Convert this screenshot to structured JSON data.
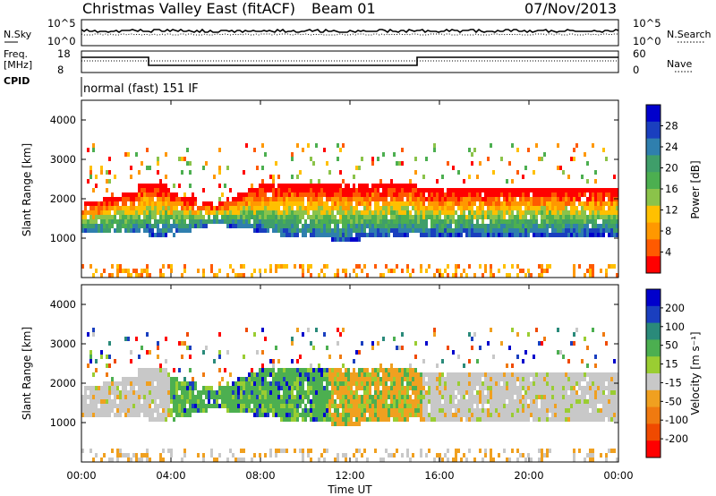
{
  "header": {
    "station": "Christmas Valley East (fitACF)",
    "beam": "Beam 01",
    "date": "07/Nov/2013"
  },
  "side_labels": {
    "nsky": "N.Sky",
    "freq": "Freq.",
    "freq_unit": "[MHz]",
    "cpid": "CPID",
    "nsearch": "N.Search",
    "nave": "Nave"
  },
  "mode": "normal (fast) 151 IF",
  "colors": {
    "power_scale": [
      "#0000cc",
      "#1a3fbf",
      "#2f7fae",
      "#3f9e6a",
      "#4caf50",
      "#8bc34a",
      "#ffc000",
      "#ff9800",
      "#ff5a00",
      "#ff0000"
    ],
    "velocity_scale": [
      "#0000cc",
      "#1a3fbf",
      "#2a8a7a",
      "#4caf50",
      "#9acd32",
      "#c8c8c8",
      "#f0a020",
      "#f07a10",
      "#f04a00",
      "#ff0000"
    ]
  },
  "chart_data": [
    {
      "type": "line",
      "name": "noise-panel",
      "left_ticks": [
        "10^5",
        "10^0"
      ],
      "right_ticks": [
        "10^5",
        "10^0"
      ]
    },
    {
      "type": "line",
      "name": "frequency-nave-panel",
      "left_ticks": [
        "18",
        "8"
      ],
      "right_ticks": [
        "60",
        "0"
      ]
    },
    {
      "type": "heatmap",
      "name": "power",
      "ylabel": "Slant Range [km]",
      "yticks": [
        "1000",
        "2000",
        "3000",
        "4000"
      ],
      "ylim": [
        0,
        4500
      ],
      "colorbar_label": "Power [dB]",
      "colorbar_ticks": [
        "4",
        "8",
        "12",
        "16",
        "20",
        "24",
        "28"
      ]
    },
    {
      "type": "heatmap",
      "name": "velocity",
      "ylabel": "Slant Range [km]",
      "yticks": [
        "1000",
        "2000",
        "3000",
        "4000"
      ],
      "ylim": [
        0,
        4500
      ],
      "colorbar_label": "Velocity [m s⁻¹]",
      "colorbar_ticks": [
        "200",
        "100",
        "50",
        "15",
        "-15",
        "-50",
        "-100",
        "-200"
      ]
    }
  ],
  "xaxis": {
    "label": "Time UT",
    "ticks": [
      "00:00",
      "04:00",
      "08:00",
      "12:00",
      "16:00",
      "20:00",
      "00:00"
    ]
  }
}
